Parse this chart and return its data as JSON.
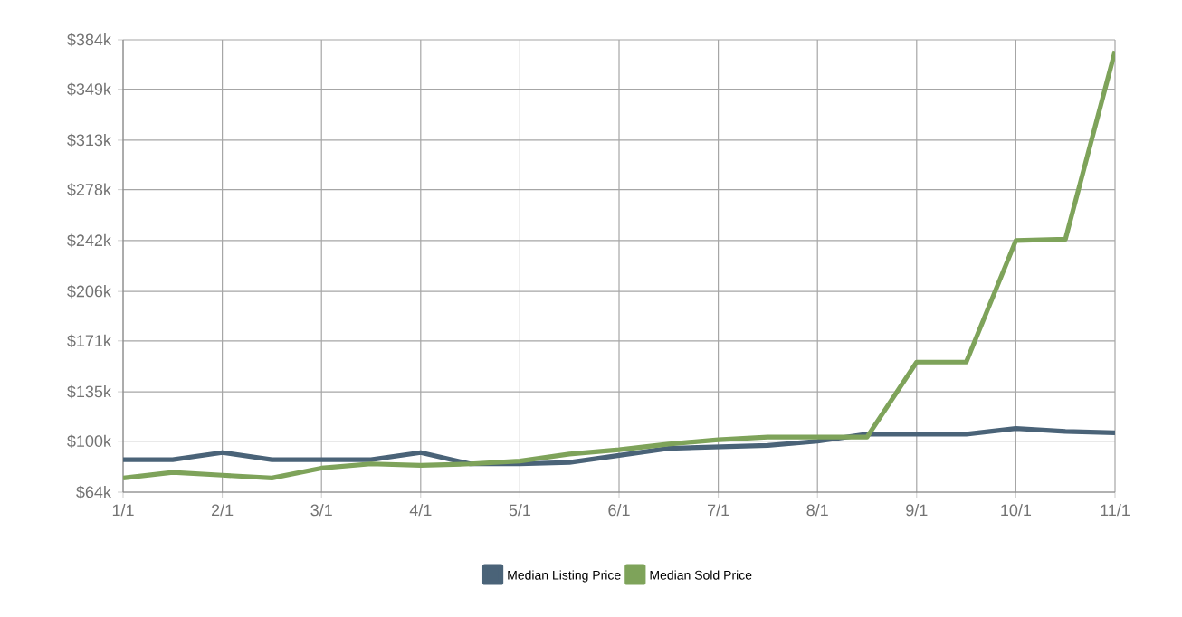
{
  "chart_data": {
    "type": "line",
    "categories": [
      "1/1",
      null,
      "2/1",
      null,
      "3/1",
      null,
      "4/1",
      null,
      "5/1",
      null,
      "6/1",
      null,
      "7/1",
      null,
      "8/1",
      null,
      "9/1",
      null,
      "10/1",
      null,
      "11/1"
    ],
    "series": [
      {
        "name": "Median Listing Price",
        "color": "#4a6378",
        "values": [
          87,
          87,
          92,
          87,
          87,
          87,
          92,
          84,
          84,
          85,
          90,
          95,
          96,
          97,
          100,
          105,
          105,
          105,
          109,
          107,
          106
        ]
      },
      {
        "name": "Median Sold Price",
        "color": "#7ea35a",
        "values": [
          74,
          78,
          76,
          74,
          81,
          84,
          83,
          84,
          86,
          91,
          94,
          98,
          101,
          103,
          103,
          103,
          156,
          156,
          242,
          243,
          376
        ]
      }
    ],
    "ylim": [
      64,
      384
    ],
    "yticks": [
      {
        "value": 64,
        "label": "$64k"
      },
      {
        "value": 100,
        "label": "$100k"
      },
      {
        "value": 135,
        "label": "$135k"
      },
      {
        "value": 171,
        "label": "$171k"
      },
      {
        "value": 206,
        "label": "$206k"
      },
      {
        "value": 242,
        "label": "$242k"
      },
      {
        "value": 278,
        "label": "$278k"
      },
      {
        "value": 313,
        "label": "$313k"
      },
      {
        "value": 349,
        "label": "$349k"
      },
      {
        "value": 384,
        "label": "$384k"
      }
    ],
    "grid": true,
    "legend": "bottom",
    "marker": "none",
    "line_style": "solid"
  }
}
